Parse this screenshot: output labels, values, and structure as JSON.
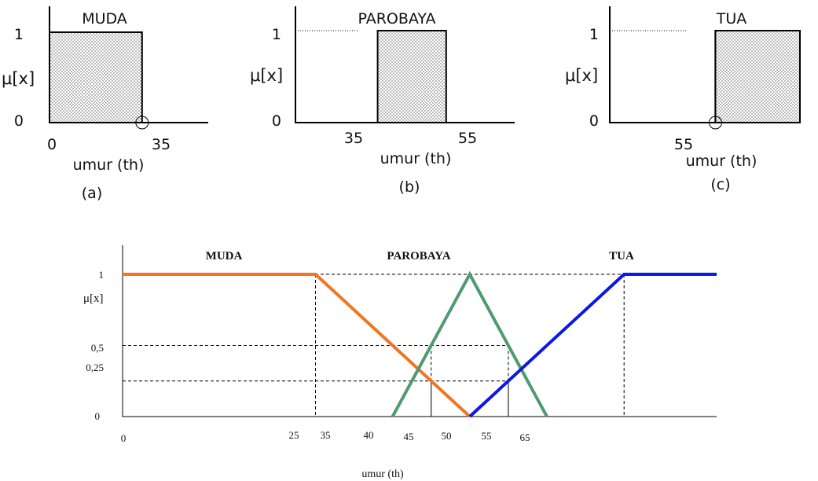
{
  "chart_data": [
    {
      "type": "area",
      "title": "MUDA",
      "ylabel": "μ[x]",
      "xlabel": "umur (th)",
      "caption": "(a)",
      "x_ticks": [
        "0",
        "35"
      ],
      "y_ticks": [
        "0",
        "1"
      ],
      "x_domain": [
        0,
        60
      ],
      "ylim": [
        0,
        1
      ],
      "series": [
        {
          "x": [
            0,
            0,
            35,
            35
          ],
          "y": [
            0,
            1,
            1,
            0
          ]
        }
      ],
      "marker": {
        "x": 35,
        "y": 0
      }
    },
    {
      "type": "area",
      "title": "PAROBAYA",
      "ylabel": "μ[x]",
      "xlabel": "umur (th)",
      "caption": "(b)",
      "x_ticks": [
        "35",
        "55"
      ],
      "y_ticks": [
        "0",
        "1"
      ],
      "x_domain": [
        11,
        75
      ],
      "ylim": [
        0,
        1
      ],
      "series": [
        {
          "x": [
            35,
            35,
            55,
            55
          ],
          "y": [
            0,
            1,
            1,
            0
          ]
        }
      ]
    },
    {
      "type": "area",
      "title": "TUA",
      "ylabel": "μ[x]",
      "xlabel": "umur (th)",
      "caption": "(c)",
      "x_ticks": [
        "55"
      ],
      "y_ticks": [
        "0",
        "1"
      ],
      "x_domain": [
        30,
        75
      ],
      "ylim": [
        0,
        1
      ],
      "series": [
        {
          "x": [
            55,
            55,
            75
          ],
          "y": [
            0,
            1,
            1
          ]
        }
      ],
      "marker": {
        "x": 55,
        "y": 0
      }
    },
    {
      "type": "line",
      "ylabel": "μ[x]",
      "xlabel": "umur (th)",
      "xlim": [
        0,
        77
      ],
      "ylim": [
        0,
        1
      ],
      "x_ticks": [
        "0",
        "25",
        "35",
        "40",
        "45",
        "50",
        "55",
        "65"
      ],
      "y_ticks": [
        "0",
        "0,25",
        "0,5",
        "1"
      ],
      "series": [
        {
          "name": "MUDA",
          "color": "#f07522",
          "x": [
            0,
            25,
            45
          ],
          "y": [
            1,
            1,
            0
          ]
        },
        {
          "name": "PAROBAYA",
          "color": "#4e9b6f",
          "x": [
            35,
            45,
            55
          ],
          "y": [
            0,
            1,
            0
          ]
        },
        {
          "name": "TUA",
          "color": "#0b18e6",
          "x": [
            45,
            65,
            77
          ],
          "y": [
            0,
            1,
            1
          ]
        }
      ],
      "guides": [
        {
          "x": [
            25,
            65
          ],
          "y": 1
        },
        {
          "x": [
            40,
            50
          ],
          "y": 0.5
        },
        {
          "x": [
            40,
            50
          ],
          "y": 0.25
        }
      ]
    }
  ]
}
